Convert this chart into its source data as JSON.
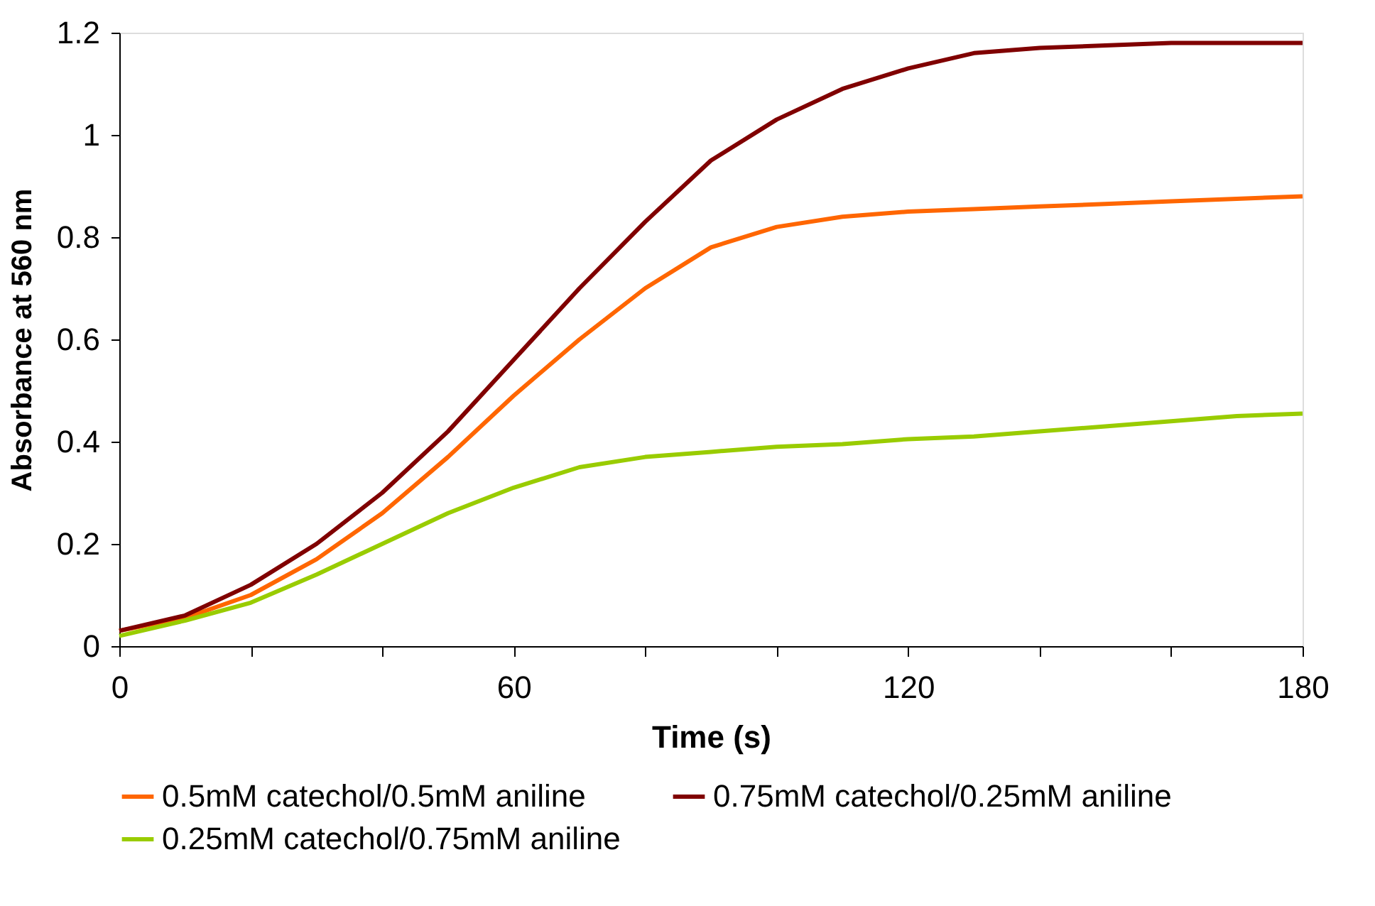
{
  "chart_data": {
    "type": "line",
    "xlabel": "Time (s)",
    "ylabel": "Absorbance at 560 nm",
    "x": [
      0,
      10,
      20,
      30,
      40,
      50,
      60,
      70,
      80,
      90,
      100,
      110,
      120,
      130,
      140,
      150,
      160,
      170,
      180
    ],
    "series": [
      {
        "name": "0.5mM catechol/0.5mM aniline",
        "color": "#ff6600",
        "values": [
          0.03,
          0.055,
          0.1,
          0.17,
          0.26,
          0.37,
          0.49,
          0.6,
          0.7,
          0.78,
          0.82,
          0.84,
          0.85,
          0.855,
          0.86,
          0.865,
          0.87,
          0.875,
          0.88
        ]
      },
      {
        "name": "0.75mM catechol/0.25mM aniline",
        "color": "#800000",
        "values": [
          0.03,
          0.06,
          0.12,
          0.2,
          0.3,
          0.42,
          0.56,
          0.7,
          0.83,
          0.95,
          1.03,
          1.09,
          1.13,
          1.16,
          1.17,
          1.175,
          1.18,
          1.18,
          1.18
        ]
      },
      {
        "name": "0.25mM catechol/0.75mM aniline",
        "color": "#99cc00",
        "values": [
          0.02,
          0.05,
          0.085,
          0.14,
          0.2,
          0.26,
          0.31,
          0.35,
          0.37,
          0.38,
          0.39,
          0.395,
          0.405,
          0.41,
          0.42,
          0.43,
          0.44,
          0.45,
          0.455
        ]
      }
    ],
    "xlim": [
      0,
      180
    ],
    "xticks": [
      0,
      {
        "value": 20,
        "label": null
      },
      {
        "value": 40,
        "label": null
      },
      60,
      {
        "value": 80,
        "label": null
      },
      {
        "value": 100,
        "label": null
      },
      120,
      {
        "value": 140,
        "label": null
      },
      {
        "value": 160,
        "label": null
      },
      180
    ],
    "ylim": [
      0,
      1.2
    ],
    "yticks": [
      0,
      0.2,
      0.4,
      0.6,
      0.8,
      1,
      1.2
    ],
    "grid": false,
    "legend": "bottom",
    "marker": "none",
    "line_style": "solid"
  }
}
